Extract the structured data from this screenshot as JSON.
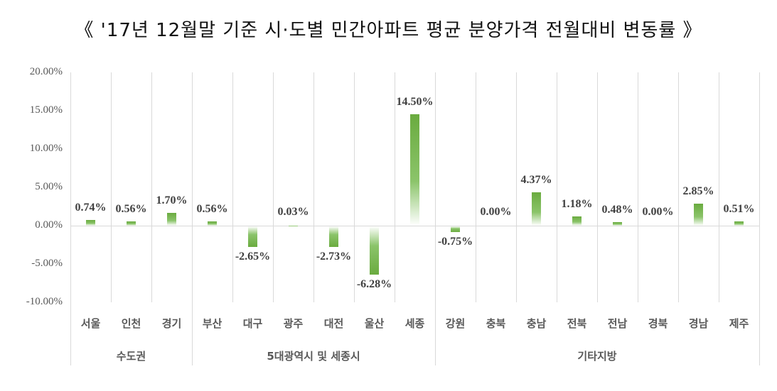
{
  "title": "《 '17년 12월말 기준 시·도별 민간아파트 평균 분양가격 전월대비 변동률 》",
  "colors": {
    "bar": "#6aab3f",
    "grid": "#d9d9d9",
    "axis_text": "#595959",
    "label_text": "#404040"
  },
  "chart_data": {
    "type": "bar",
    "title": "《 '17년 12월말 기준 시·도별 민간아파트 평균 분양가격 전월대비 변동률 》",
    "xlabel": "",
    "ylabel": "",
    "ylim": [
      -0.1,
      0.2
    ],
    "yticks": [
      "20.00%",
      "15.00%",
      "10.00%",
      "5.00%",
      "0.00%",
      "-5.00%",
      "-10.00%"
    ],
    "grid": "vertical separators",
    "legend": "none",
    "categories": [
      "서울",
      "인천",
      "경기",
      "부산",
      "대구",
      "광주",
      "대전",
      "울산",
      "세종",
      "강원",
      "충북",
      "충남",
      "전북",
      "전남",
      "경북",
      "경남",
      "제주"
    ],
    "groups": [
      {
        "label": "수도권",
        "members": [
          "서울",
          "인천",
          "경기"
        ]
      },
      {
        "label": "5대광역시 및 세종시",
        "members": [
          "부산",
          "대구",
          "광주",
          "대전",
          "울산",
          "세종"
        ]
      },
      {
        "label": "기타지방",
        "members": [
          "강원",
          "충북",
          "충남",
          "전북",
          "전남",
          "경북",
          "경남",
          "제주"
        ]
      }
    ],
    "series": [
      {
        "name": "전월대비 변동률",
        "values": [
          0.74,
          0.56,
          1.7,
          0.56,
          -2.65,
          0.03,
          -2.73,
          -6.28,
          14.5,
          -0.75,
          0.0,
          4.37,
          1.18,
          0.48,
          0.0,
          2.85,
          0.51
        ],
        "labels": [
          "0.74%",
          "0.56%",
          "1.70%",
          "0.56%",
          "-2.65%",
          "0.03%",
          "-2.73%",
          "-6.28%",
          "14.50%",
          "-0.75%",
          "0.00%",
          "4.37%",
          "1.18%",
          "0.48%",
          "0.00%",
          "2.85%",
          "0.51%"
        ]
      }
    ]
  }
}
